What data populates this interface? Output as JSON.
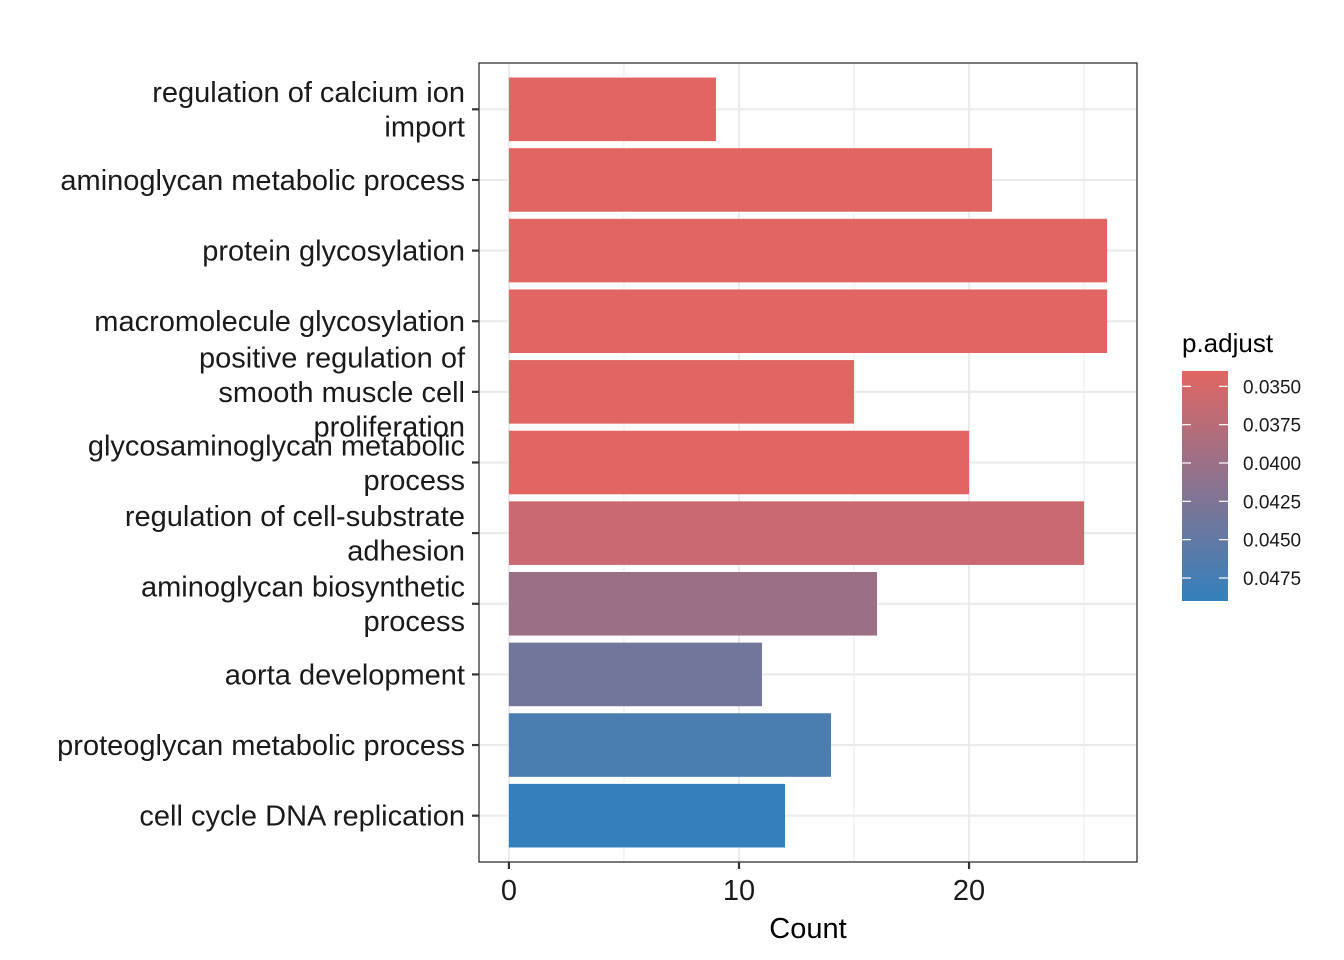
{
  "chart_data": {
    "type": "bar",
    "orientation": "horizontal",
    "categories": [
      "regulation of calcium ion\nimport",
      "aminoglycan metabolic process",
      "protein glycosylation",
      "macromolecule glycosylation",
      "positive regulation of\nsmooth muscle cell\nproliferation",
      "glycosaminoglycan metabolic\nprocess",
      "regulation of cell-substrate\nadhesion",
      "aminoglycan biosynthetic\nprocess",
      "aorta development",
      "proteoglycan metabolic process",
      "cell cycle DNA replication"
    ],
    "values": [
      9,
      21,
      26,
      26,
      15,
      20,
      25,
      16,
      11,
      14,
      12
    ],
    "p_adjust": [
      0.034,
      0.034,
      0.034,
      0.034,
      0.034,
      0.034,
      0.036,
      0.04,
      0.0435,
      0.047,
      0.049
    ],
    "xlabel": "Count",
    "ylabel": "",
    "xlim": [
      -1.3,
      27.3
    ],
    "xticks": [
      0,
      10,
      20
    ],
    "grid": true,
    "legend": {
      "title": "p.adjust",
      "placement": "right",
      "ticks": [
        "0.0350",
        "0.0375",
        "0.0400",
        "0.0425",
        "0.0450",
        "0.0475"
      ],
      "tick_values": [
        0.035,
        0.0375,
        0.04,
        0.0425,
        0.045,
        0.0475
      ],
      "range": [
        0.034,
        0.049
      ],
      "color_low": "#E16663",
      "color_high": "#3380BC"
    }
  }
}
